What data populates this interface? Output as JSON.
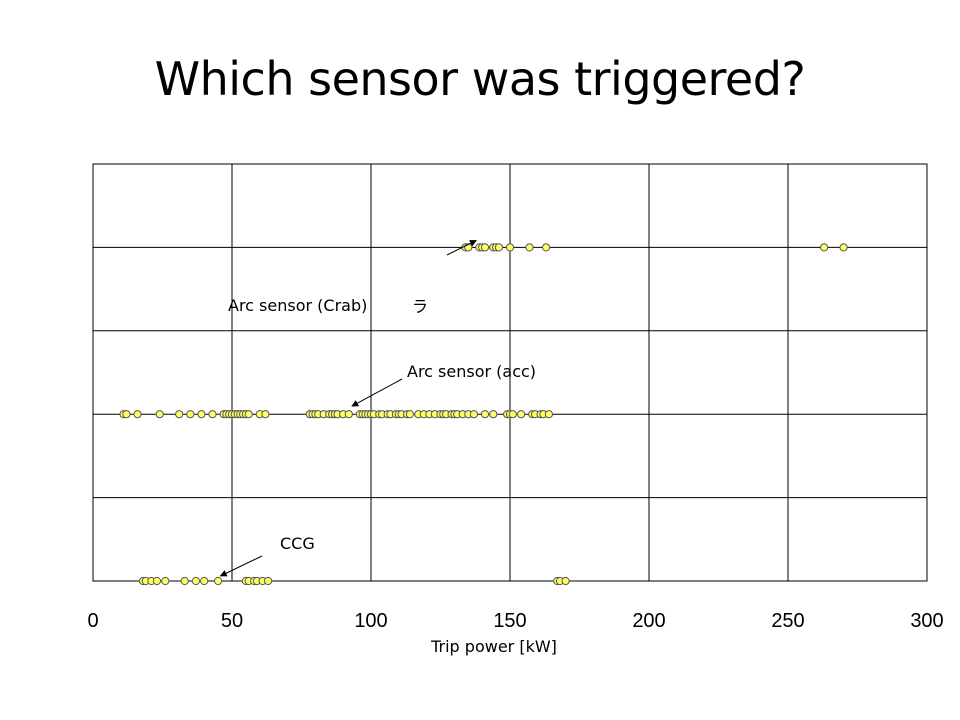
{
  "slide": {
    "title": "Which sensor was triggered?"
  },
  "chart_data": {
    "type": "scatter",
    "title": "",
    "xlabel": "Trip power [kW]",
    "ylabel": "",
    "xlim": [
      0,
      300
    ],
    "ylim": [
      0,
      5
    ],
    "xticks": [
      0,
      50,
      100,
      150,
      200,
      250,
      300
    ],
    "xtick_labels": [
      "0",
      "50",
      "100",
      "150",
      "200",
      "250",
      "300"
    ],
    "grid": true,
    "point_color": "#ffff66",
    "point_edge_color": "#555555",
    "series": [
      {
        "name": "CCG",
        "y": 0,
        "x": [
          18,
          19,
          21,
          23,
          26,
          33,
          37,
          40,
          45,
          55,
          56,
          58,
          59,
          61,
          63,
          167,
          168,
          170
        ]
      },
      {
        "name": "Arc sensor (acc)",
        "y": 2,
        "x": [
          11,
          12,
          16,
          24,
          31,
          35,
          39,
          43,
          47,
          48,
          49,
          50,
          51,
          52,
          53,
          54,
          55,
          56,
          60,
          62,
          78,
          79,
          80,
          81,
          83,
          85,
          86,
          87,
          88,
          90,
          92,
          96,
          97,
          98,
          99,
          100,
          101,
          103,
          104,
          106,
          107,
          109,
          110,
          111,
          113,
          114,
          117,
          119,
          121,
          123,
          125,
          126,
          127,
          129,
          130,
          131,
          133,
          135,
          137,
          141,
          144,
          149,
          150,
          151,
          154,
          158,
          159,
          161,
          162,
          164
        ]
      },
      {
        "name": "Arc sensor (Crab)",
        "y": 4,
        "x": [
          134,
          135,
          139,
          140,
          141,
          144,
          145,
          146,
          150,
          157,
          163,
          263,
          270
        ]
      }
    ],
    "annotations": [
      {
        "text": "Arc sensor (Crab)",
        "target_x": 135,
        "target_y": 4
      },
      {
        "text": "Arc sensor (acc)",
        "target_x": 96,
        "target_y": 2
      },
      {
        "text": "CCG",
        "target_x": 48,
        "target_y": 0
      }
    ],
    "stray_glyph": "ラ"
  }
}
